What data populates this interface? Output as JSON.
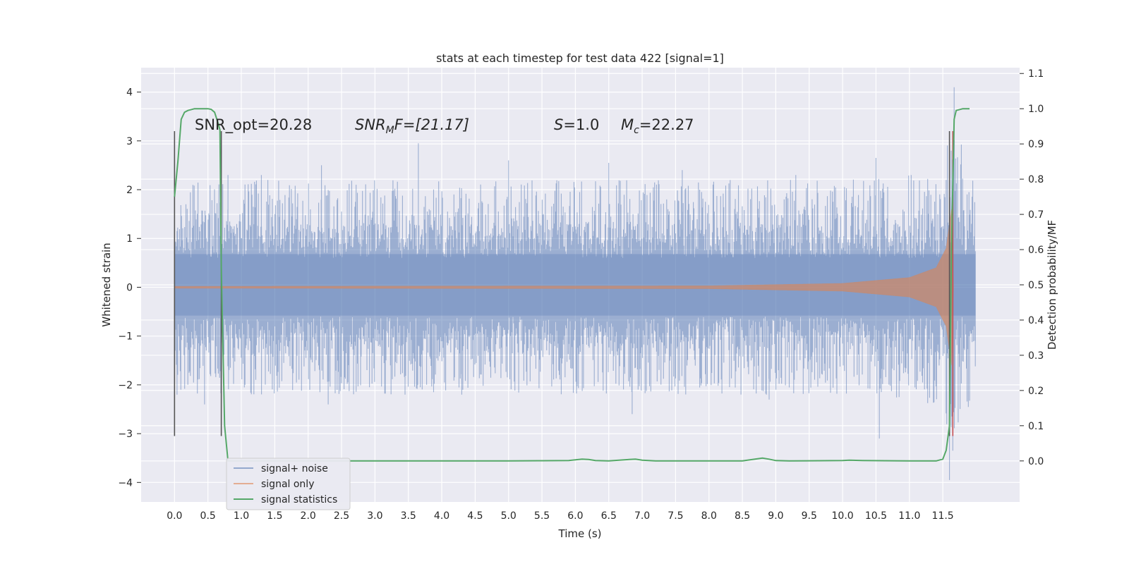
{
  "chart_data": {
    "type": "line",
    "title": "stats at each timestep for test data 422 [signal=1]",
    "xlabel": "Time (s)",
    "ylabel": "Whitened strain",
    "y2label": "Detection probability/MF",
    "xlim": [
      -0.5,
      12.65
    ],
    "ylim": [
      -4.4,
      4.5
    ],
    "y2lim": [
      -0.1165,
      1.1165
    ],
    "xticks": [
      0.0,
      0.5,
      1.0,
      1.5,
      2.0,
      2.5,
      3.0,
      3.5,
      4.0,
      4.5,
      5.0,
      5.5,
      6.0,
      6.5,
      7.0,
      7.5,
      8.0,
      8.5,
      9.0,
      9.5,
      10.0,
      10.5,
      11.0,
      11.5
    ],
    "xtick_labels": [
      "0.0",
      "0.5",
      "1.0",
      "1.5",
      "2.0",
      "2.5",
      "3.0",
      "3.5",
      "4.0",
      "4.5",
      "5.0",
      "5.5",
      "6.0",
      "6.5",
      "7.0",
      "7.5",
      "8.0",
      "8.5",
      "9.0",
      "9.5",
      "10.0",
      "10.5",
      "11.0",
      "11.5"
    ],
    "yticks": [
      -4,
      -3,
      -2,
      -1,
      0,
      1,
      2,
      3,
      4
    ],
    "ytick_labels": [
      "−4",
      "−3",
      "−2",
      "−1",
      "0",
      "1",
      "2",
      "3",
      "4"
    ],
    "y2ticks": [
      0.0,
      0.1,
      0.2,
      0.3,
      0.4,
      0.5,
      0.6,
      0.7,
      0.8,
      0.9,
      1.0,
      1.1
    ],
    "y2tick_labels": [
      "0.0",
      "0.1",
      "0.2",
      "0.3",
      "0.4",
      "0.5",
      "0.6",
      "0.7",
      "0.8",
      "0.9",
      "1.0",
      "1.1"
    ],
    "grid": true,
    "legend_position": "lower-left",
    "annotations": {
      "snr_opt": "SNR_opt=20.28",
      "snr_mf_main": "SNR",
      "snr_mf_sub": "M",
      "snr_mf_rest": "F=[21.17]",
      "s_main": "S",
      "s_rest": "=1.0",
      "mc_main": "M",
      "mc_sub": "c",
      "mc_rest": "=22.27"
    },
    "series": [
      {
        "name": "signal+ noise",
        "color": "#4c72b0",
        "axis": "left",
        "x_range": [
          0.0,
          11.99
        ],
        "envelope": {
          "x": [
            0.0,
            1.0,
            2.0,
            3.0,
            4.0,
            5.0,
            6.0,
            7.0,
            8.0,
            9.0,
            10.0,
            11.0,
            11.5,
            11.6,
            11.65,
            11.99
          ],
          "low": [
            -1.3,
            -1.3,
            -1.3,
            -1.3,
            -1.3,
            -1.3,
            -1.3,
            -1.3,
            -1.3,
            -1.3,
            -1.3,
            -1.4,
            -1.6,
            -2.5,
            -2.5,
            -1.2
          ],
          "high": [
            1.3,
            1.3,
            1.3,
            1.3,
            1.3,
            1.3,
            1.3,
            1.3,
            1.3,
            1.3,
            1.3,
            1.4,
            1.6,
            2.5,
            2.5,
            1.3
          ]
        },
        "peaks": [
          {
            "x": 0.8,
            "y": 2.3
          },
          {
            "x": 2.2,
            "y": 2.5
          },
          {
            "x": 3.65,
            "y": 2.95
          },
          {
            "x": 5.0,
            "y": 2.6
          },
          {
            "x": 6.5,
            "y": 2.55
          },
          {
            "x": 10.5,
            "y": 2.65
          },
          {
            "x": 11.67,
            "y": 4.1
          },
          {
            "x": 11.55,
            "y": 2.2
          },
          {
            "x": 1.3,
            "y": 2.3
          },
          {
            "x": 7.6,
            "y": 2.4
          },
          {
            "x": 9.3,
            "y": 2.3
          }
        ],
        "troughs": [
          {
            "x": 0.45,
            "y": -2.4
          },
          {
            "x": 2.3,
            "y": -2.4
          },
          {
            "x": 6.85,
            "y": -2.6
          },
          {
            "x": 10.55,
            "y": -3.1
          },
          {
            "x": 11.6,
            "y": -3.95
          },
          {
            "x": 11.65,
            "y": -3.35
          },
          {
            "x": 3.45,
            "y": -2.2
          },
          {
            "x": 4.3,
            "y": -2.2
          },
          {
            "x": 8.9,
            "y": -2.3
          }
        ]
      },
      {
        "name": "signal only",
        "color": "#dd8452",
        "axis": "left",
        "description_x": [
          0.0,
          8.0,
          10.0,
          11.0,
          11.4,
          11.55,
          11.63,
          11.66
        ],
        "amplitude": [
          0.02,
          0.03,
          0.08,
          0.2,
          0.4,
          0.8,
          1.6,
          0.0
        ]
      },
      {
        "name": "signal statistics",
        "color": "#55a868",
        "axis": "right",
        "x": [
          0.0,
          0.05,
          0.1,
          0.15,
          0.2,
          0.3,
          0.4,
          0.5,
          0.55,
          0.6,
          0.65,
          0.68,
          0.7,
          0.75,
          0.8,
          0.85,
          1.0,
          2.0,
          3.0,
          4.0,
          5.0,
          5.5,
          5.9,
          6.1,
          6.2,
          6.3,
          6.5,
          6.8,
          6.9,
          7.0,
          7.2,
          8.0,
          8.5,
          8.8,
          8.9,
          9.0,
          9.2,
          10.0,
          10.1,
          10.3,
          11.0,
          11.4,
          11.5,
          11.55,
          11.6,
          11.63,
          11.67,
          11.7,
          11.8,
          11.9
        ],
        "y": [
          0.75,
          0.85,
          0.97,
          0.99,
          0.995,
          1.0,
          1.0,
          1.0,
          0.998,
          0.99,
          0.96,
          0.94,
          0.55,
          0.1,
          0.0,
          0.0,
          0.0,
          0.0,
          0.0,
          0.0,
          0.0,
          0.0005,
          0.001,
          0.005,
          0.004,
          0.001,
          0.0,
          0.004,
          0.005,
          0.002,
          0.0,
          0.0,
          0.0,
          0.008,
          0.005,
          0.001,
          0.0,
          0.001,
          0.002,
          0.001,
          0.0,
          0.0,
          0.005,
          0.03,
          0.1,
          0.6,
          0.97,
          0.995,
          1.0,
          1.0
        ]
      }
    ],
    "vlines": [
      {
        "x": 0.0,
        "ymin": -3.05,
        "ymax": 3.2,
        "color": "#555555"
      },
      {
        "x": 0.7,
        "ymin": -3.05,
        "ymax": 3.2,
        "color": "#555555"
      },
      {
        "x": 11.6,
        "ymin": -3.05,
        "ymax": 3.2,
        "color": "#555555"
      },
      {
        "x": 11.65,
        "ymin": -3.05,
        "ymax": 3.2,
        "color": "#c44e52"
      }
    ]
  }
}
